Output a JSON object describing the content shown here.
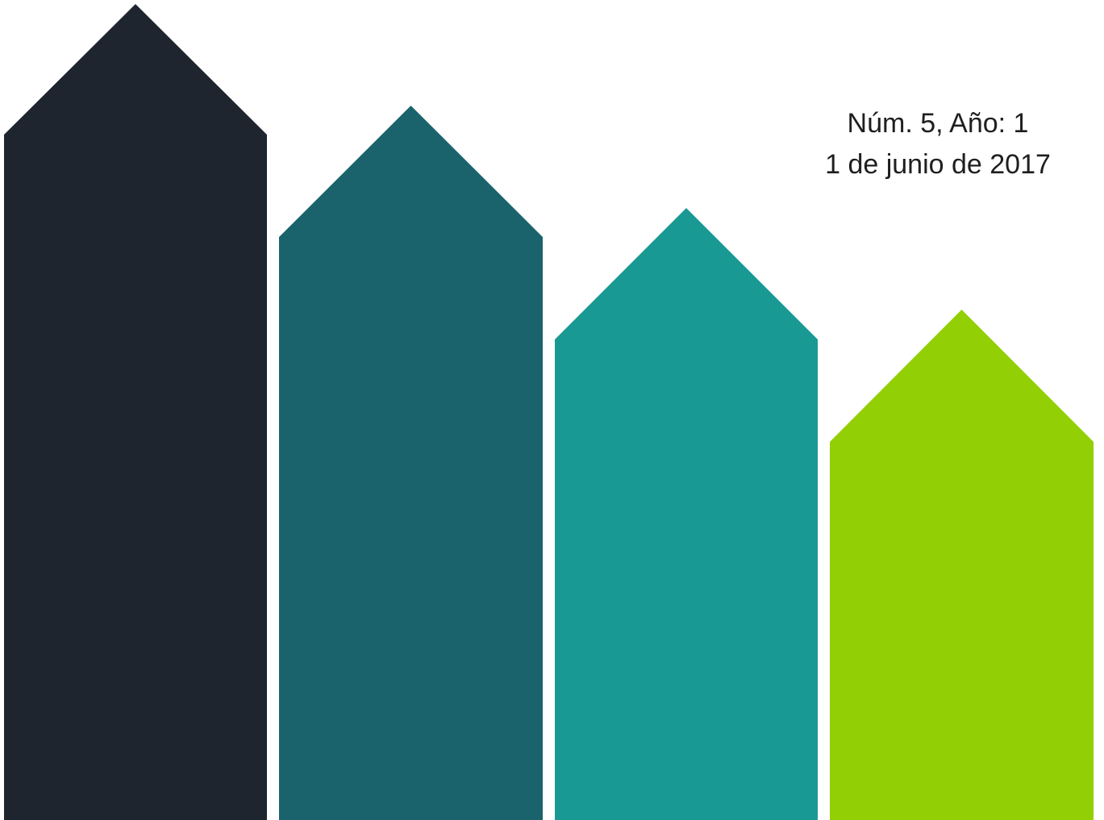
{
  "issue": {
    "number_line": "Núm. 5, Año: 1",
    "date_line": "1 de junio de 2017"
  },
  "decorative_bars": [
    {
      "name": "bar-1",
      "color": "#1e252e"
    },
    {
      "name": "bar-2",
      "color": "#1a636d"
    },
    {
      "name": "bar-3",
      "color": "#189993"
    },
    {
      "name": "bar-4",
      "color": "#92cf04"
    }
  ]
}
